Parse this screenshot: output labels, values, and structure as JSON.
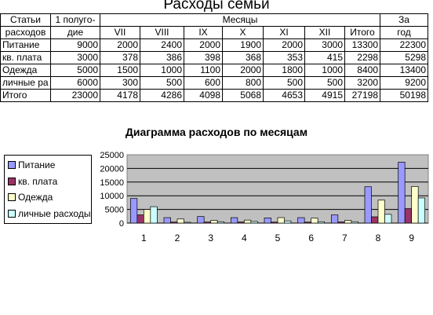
{
  "title": "Расходы семьи",
  "table": {
    "h_col1": [
      "Статьи",
      "расходов"
    ],
    "h_col2": [
      "1 полугo-",
      "дие"
    ],
    "h_months": "Месяцы",
    "h_year": [
      "За",
      "год"
    ],
    "months": [
      "VII",
      "VIII",
      "IX",
      "X",
      "XI",
      "XII"
    ],
    "total_label": "Итого",
    "rows": [
      {
        "name": "Питание",
        "half": "9000",
        "m": [
          "2000",
          "2400",
          "2000",
          "1900",
          "2000",
          "3000"
        ],
        "total": "13300",
        "year": "22300"
      },
      {
        "name": "кв. плата",
        "half": "3000",
        "m": [
          "378",
          "386",
          "398",
          "368",
          "353",
          "415"
        ],
        "total": "2298",
        "year": "5298"
      },
      {
        "name": "Одежда",
        "half": "5000",
        "m": [
          "1500",
          "1000",
          "1100",
          "2000",
          "1800",
          "1000"
        ],
        "total": "8400",
        "year": "13400"
      },
      {
        "name": "личные ра",
        "half": "6000",
        "m": [
          "300",
          "500",
          "600",
          "800",
          "500",
          "500"
        ],
        "total": "3200",
        "year": "9200"
      },
      {
        "name": "Итого",
        "half": "23000",
        "m": [
          "4178",
          "4286",
          "4098",
          "5068",
          "4653",
          "4915"
        ],
        "total": "27198",
        "year": "50198"
      }
    ]
  },
  "chart_data": {
    "type": "bar",
    "title": "Диаграмма расходов по месяцам",
    "categories": [
      "1",
      "2",
      "3",
      "4",
      "5",
      "6",
      "7",
      "8",
      "9"
    ],
    "ylim": [
      0,
      25000
    ],
    "yticks": [
      "0",
      "5000",
      "10000",
      "15000",
      "20000",
      "25000"
    ],
    "legend_position": "left",
    "grid": true,
    "series": [
      {
        "name": "Питание",
        "color": "#9999ff",
        "values": [
          9000,
          2000,
          2400,
          2000,
          1900,
          2000,
          3000,
          13300,
          22300
        ]
      },
      {
        "name": "кв. плата",
        "color": "#993366",
        "values": [
          3000,
          378,
          386,
          398,
          368,
          353,
          415,
          2298,
          5298
        ]
      },
      {
        "name": "Одежда",
        "color": "#ffffcc",
        "values": [
          5000,
          1500,
          1000,
          1100,
          2000,
          1800,
          1000,
          8400,
          13400
        ]
      },
      {
        "name": "личные расходы",
        "color": "#ccffff",
        "values": [
          6000,
          300,
          500,
          600,
          800,
          500,
          500,
          3200,
          9200
        ]
      }
    ]
  }
}
